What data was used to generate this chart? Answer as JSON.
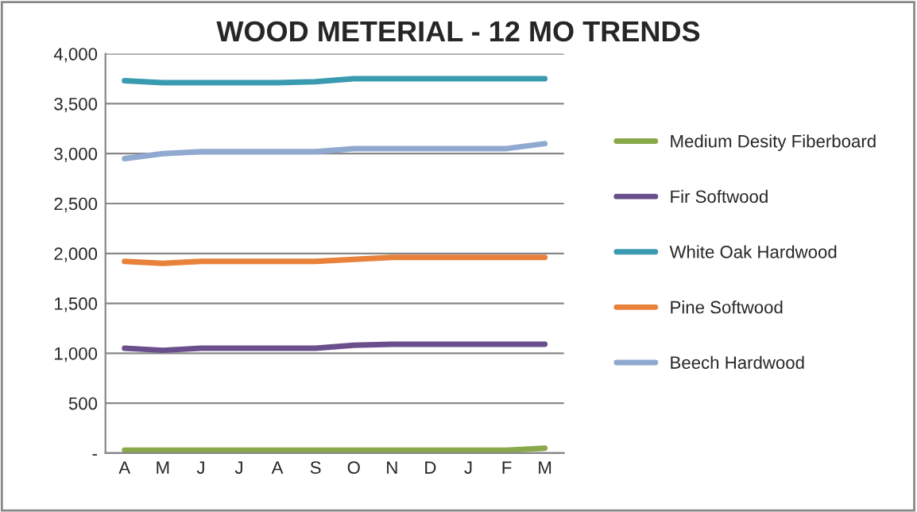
{
  "chart_data": {
    "type": "line",
    "title": "WOOD METERIAL - 12 MO TRENDS",
    "categories": [
      "A",
      "M",
      "J",
      "J",
      "A",
      "S",
      "O",
      "N",
      "D",
      "J",
      "F",
      "M"
    ],
    "series": [
      {
        "name": "Medium Desity Fiberboard",
        "color": "#8aa94a",
        "values": [
          30,
          30,
          30,
          30,
          30,
          30,
          30,
          30,
          30,
          30,
          30,
          50
        ]
      },
      {
        "name": "Fir Softwood",
        "color": "#6a4f8c",
        "values": [
          1050,
          1030,
          1050,
          1050,
          1050,
          1050,
          1080,
          1090,
          1090,
          1090,
          1090,
          1090
        ]
      },
      {
        "name": "White Oak Hardwood",
        "color": "#3a9bb0",
        "values": [
          3730,
          3710,
          3710,
          3710,
          3710,
          3720,
          3750,
          3750,
          3750,
          3750,
          3750,
          3750
        ]
      },
      {
        "name": "Pine Softwood",
        "color": "#e8813a",
        "values": [
          1920,
          1900,
          1920,
          1920,
          1920,
          1920,
          1940,
          1960,
          1960,
          1960,
          1960,
          1960
        ]
      },
      {
        "name": "Beech Hardwood",
        "color": "#8fa9d0",
        "values": [
          2950,
          3000,
          3020,
          3020,
          3020,
          3020,
          3050,
          3050,
          3050,
          3050,
          3050,
          3100
        ]
      }
    ],
    "ylim": [
      0,
      4000
    ],
    "yticks": [
      {
        "value": 0,
        "label": "-"
      },
      {
        "value": 500,
        "label": "500"
      },
      {
        "value": 1000,
        "label": "1,000"
      },
      {
        "value": 1500,
        "label": "1,500"
      },
      {
        "value": 2000,
        "label": "2,000"
      },
      {
        "value": 2500,
        "label": "2,500"
      },
      {
        "value": 3000,
        "label": "3,000"
      },
      {
        "value": 3500,
        "label": "3,500"
      },
      {
        "value": 4000,
        "label": "4,000"
      }
    ],
    "grid": "y",
    "legend": "right",
    "marker": "none",
    "line_style": "solid"
  }
}
